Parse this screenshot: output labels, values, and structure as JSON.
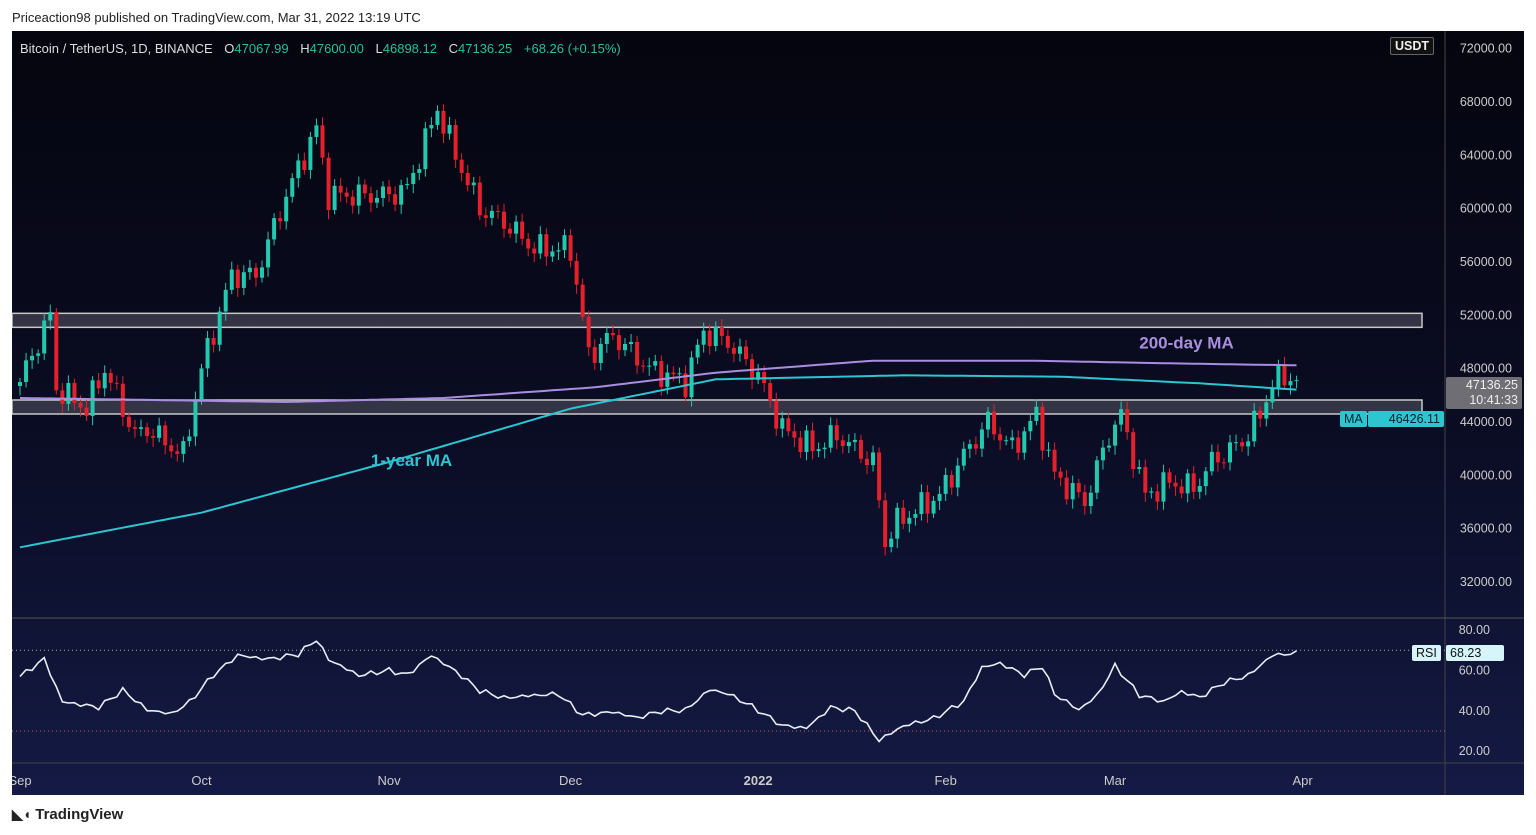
{
  "published": "Priceaction98 published on TradingView.com, Mar 31, 2022 13:19 UTC",
  "legend": {
    "symbol": "Bitcoin / TetherUS, 1D, BINANCE",
    "o_label": "O",
    "o": "47067.99",
    "h_label": "H",
    "h": "47600.00",
    "l_label": "L",
    "l": "46898.12",
    "c_label": "C",
    "c": "47136.25",
    "change": "+68.26 (+0.15%)"
  },
  "currency_badge": "USDT",
  "footer_brand": "TradingView",
  "colors": {
    "up": "#22c9ae",
    "down": "#e3202b",
    "ma200": "#a98ee0",
    "ma365": "#2cc5d0",
    "zone": "#c8c8c8"
  },
  "tags": {
    "price": "47136.25",
    "countdown": "10:41:33",
    "ma_label": "MA",
    "ma_value": "46426.11",
    "rsi_label": "RSI",
    "rsi_value": "68.23"
  },
  "chart_data": [
    {
      "type": "candlestick",
      "title": "Bitcoin / TetherUS, 1D, BINANCE",
      "ylim": [
        30000,
        72000
      ],
      "y_ticks": [
        "72000.00",
        "68000.00",
        "64000.00",
        "60000.00",
        "56000.00",
        "52000.00",
        "48000.00",
        "44000.00",
        "40000.00",
        "36000.00",
        "32000.00"
      ],
      "x_ticks": [
        {
          "date": "2021-09-01",
          "label": "Sep"
        },
        {
          "date": "2021-10-01",
          "label": "Oct"
        },
        {
          "date": "2021-11-01",
          "label": "Nov"
        },
        {
          "date": "2021-12-01",
          "label": "Dec"
        },
        {
          "date": "2022-01-01",
          "label": "2022"
        },
        {
          "date": "2022-02-01",
          "label": "Feb"
        },
        {
          "date": "2022-03-01",
          "label": "Mar"
        },
        {
          "date": "2022-04-01",
          "label": "Apr"
        }
      ],
      "close_keypoints": [
        [
          "2021-09-01",
          47000
        ],
        [
          "2021-09-06",
          52000
        ],
        [
          "2021-09-07",
          46500
        ],
        [
          "2021-09-12",
          45000
        ],
        [
          "2021-09-15",
          48000
        ],
        [
          "2021-09-20",
          43000
        ],
        [
          "2021-09-22",
          43500
        ],
        [
          "2021-09-28",
          41500
        ],
        [
          "2021-10-01",
          48000
        ],
        [
          "2021-10-06",
          55000
        ],
        [
          "2021-10-10",
          55000
        ],
        [
          "2021-10-15",
          61000
        ],
        [
          "2021-10-20",
          66000
        ],
        [
          "2021-10-22",
          61000
        ],
        [
          "2021-10-28",
          61000
        ],
        [
          "2021-11-01",
          61000
        ],
        [
          "2021-11-04",
          61500
        ],
        [
          "2021-11-09",
          67500
        ],
        [
          "2021-11-12",
          64000
        ],
        [
          "2021-11-16",
          60000
        ],
        [
          "2021-11-20",
          59000
        ],
        [
          "2021-11-25",
          57000
        ],
        [
          "2021-12-01",
          57000
        ],
        [
          "2021-12-04",
          49000
        ],
        [
          "2021-12-08",
          50500
        ],
        [
          "2021-12-14",
          48000
        ],
        [
          "2021-12-20",
          47000
        ],
        [
          "2021-12-23",
          50800
        ],
        [
          "2021-12-27",
          50000
        ],
        [
          "2022-01-01",
          47500
        ],
        [
          "2022-01-05",
          43500
        ],
        [
          "2022-01-10",
          42000
        ],
        [
          "2022-01-14",
          43000
        ],
        [
          "2022-01-20",
          41000
        ],
        [
          "2022-01-22",
          35000
        ],
        [
          "2022-01-24",
          36500
        ],
        [
          "2022-01-31",
          38500
        ],
        [
          "2022-02-04",
          41500
        ],
        [
          "2022-02-08",
          44000
        ],
        [
          "2022-02-12",
          42000
        ],
        [
          "2022-02-16",
          44500
        ],
        [
          "2022-02-19",
          40000
        ],
        [
          "2022-02-24",
          38000
        ],
        [
          "2022-02-28",
          43000
        ],
        [
          "2022-03-02",
          44500
        ],
        [
          "2022-03-06",
          38500
        ],
        [
          "2022-03-10",
          39500
        ],
        [
          "2022-03-14",
          39000
        ],
        [
          "2022-03-17",
          41000
        ],
        [
          "2022-03-22",
          42500
        ],
        [
          "2022-03-25",
          44500
        ],
        [
          "2022-03-27",
          47000
        ],
        [
          "2022-03-29",
          47400
        ],
        [
          "2022-03-31",
          47136.25
        ]
      ],
      "series": [
        {
          "name": "200-day MA",
          "points": [
            [
              "2021-09-01",
              45800
            ],
            [
              "2021-10-15",
              45500
            ],
            [
              "2021-11-10",
              45800
            ],
            [
              "2021-12-05",
              46600
            ],
            [
              "2021-12-25",
              47700
            ],
            [
              "2022-01-20",
              48600
            ],
            [
              "2022-02-15",
              48600
            ],
            [
              "2022-03-10",
              48400
            ],
            [
              "2022-03-31",
              48250
            ]
          ]
        },
        {
          "name": "1-year MA",
          "points": [
            [
              "2021-09-01",
              34600
            ],
            [
              "2021-10-01",
              37200
            ],
            [
              "2021-11-01",
              41000
            ],
            [
              "2021-12-01",
              45000
            ],
            [
              "2021-12-25",
              47200
            ],
            [
              "2022-01-25",
              47500
            ],
            [
              "2022-02-20",
              47400
            ],
            [
              "2022-03-15",
              46900
            ],
            [
              "2022-03-31",
              46426.11
            ]
          ]
        }
      ],
      "zones": [
        {
          "from": 51100,
          "to": 52150
        },
        {
          "from": 44600,
          "to": 45650
        }
      ],
      "annotations": [
        {
          "text": "200-day MA",
          "date": "2022-03-05",
          "price": 49500
        },
        {
          "text": "1-year MA",
          "date": "2021-10-29",
          "price": 40700
        }
      ]
    },
    {
      "type": "line",
      "title": "RSI",
      "ylim": [
        15,
        85
      ],
      "y_ticks": [
        "80.00",
        "60.00",
        "40.00",
        "20.00"
      ],
      "levels": [
        70,
        30
      ],
      "points": [
        [
          "2021-09-01",
          57
        ],
        [
          "2021-09-05",
          66
        ],
        [
          "2021-09-08",
          45
        ],
        [
          "2021-09-14",
          42
        ],
        [
          "2021-09-18",
          50
        ],
        [
          "2021-09-22",
          40
        ],
        [
          "2021-09-26",
          38
        ],
        [
          "2021-09-29",
          44
        ],
        [
          "2021-10-03",
          58
        ],
        [
          "2021-10-07",
          68
        ],
        [
          "2021-10-12",
          66
        ],
        [
          "2021-10-17",
          68
        ],
        [
          "2021-10-20",
          75
        ],
        [
          "2021-10-22",
          65
        ],
        [
          "2021-10-27",
          57
        ],
        [
          "2021-11-01",
          60
        ],
        [
          "2021-11-04",
          58
        ],
        [
          "2021-11-08",
          68
        ],
        [
          "2021-11-12",
          60
        ],
        [
          "2021-11-16",
          50
        ],
        [
          "2021-11-20",
          46
        ],
        [
          "2021-11-24",
          47
        ],
        [
          "2021-11-29",
          48
        ],
        [
          "2021-12-03",
          38
        ],
        [
          "2021-12-08",
          40
        ],
        [
          "2021-12-12",
          37
        ],
        [
          "2021-12-16",
          40
        ],
        [
          "2021-12-20",
          40
        ],
        [
          "2021-12-24",
          50
        ],
        [
          "2021-12-27",
          48
        ],
        [
          "2021-12-31",
          42
        ],
        [
          "2022-01-05",
          33
        ],
        [
          "2022-01-09",
          32
        ],
        [
          "2022-01-13",
          42
        ],
        [
          "2022-01-17",
          40
        ],
        [
          "2022-01-21",
          25
        ],
        [
          "2022-01-25",
          32
        ],
        [
          "2022-01-30",
          36
        ],
        [
          "2022-02-04",
          45
        ],
        [
          "2022-02-07",
          62
        ],
        [
          "2022-02-10",
          64
        ],
        [
          "2022-02-14",
          58
        ],
        [
          "2022-02-17",
          62
        ],
        [
          "2022-02-19",
          48
        ],
        [
          "2022-02-23",
          40
        ],
        [
          "2022-02-26",
          47
        ],
        [
          "2022-03-01",
          62
        ],
        [
          "2022-03-05",
          48
        ],
        [
          "2022-03-09",
          45
        ],
        [
          "2022-03-12",
          50
        ],
        [
          "2022-03-15",
          47
        ],
        [
          "2022-03-19",
          54
        ],
        [
          "2022-03-23",
          57
        ],
        [
          "2022-03-27",
          67
        ],
        [
          "2022-03-31",
          68.23
        ]
      ]
    }
  ]
}
